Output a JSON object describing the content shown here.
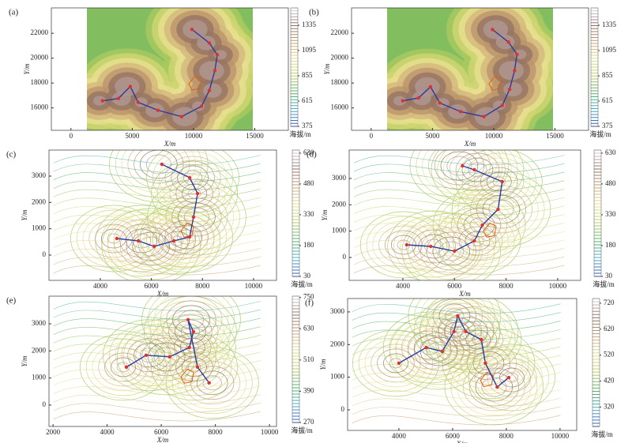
{
  "chart_data": [
    {
      "type": "contour",
      "label": "(a)",
      "x_label": "X/m",
      "y_label": "Y/m",
      "colorbar_label": "海拔/m",
      "filled": true,
      "xlim": [
        -1600,
        17740
      ],
      "ylim": [
        14200,
        24040
      ],
      "xticks": [
        0,
        5000,
        10000,
        15000
      ],
      "yticks": [
        16000,
        18000,
        20000,
        22000
      ],
      "clim": [
        375,
        1500
      ],
      "cticks": [
        375,
        615,
        855,
        1095,
        1335
      ],
      "route": {
        "color": "#2a3aa0",
        "point_color": "#e03030",
        "x": [
          2580,
          3870,
          4840,
          5480,
          7100,
          9030,
          10650,
          11290,
          11740,
          11940,
          11290,
          9870
        ],
        "y": [
          16570,
          16760,
          17720,
          16450,
          15810,
          15300,
          16130,
          17400,
          18990,
          20270,
          21220,
          22310
        ]
      }
    },
    {
      "type": "contour",
      "label": "(b)",
      "x_label": "X/m",
      "y_label": "Y/m",
      "colorbar_label": "海拔/m",
      "filled": true,
      "xlim": [
        -1600,
        17740
      ],
      "ylim": [
        14200,
        24040
      ],
      "xticks": [
        0,
        5000,
        10000,
        15000
      ],
      "yticks": [
        16000,
        18000,
        20000,
        22000
      ],
      "clim": [
        375,
        1500
      ],
      "cticks": [
        375,
        615,
        855,
        1095,
        1335
      ],
      "route": {
        "color": "#2a3aa0",
        "point_color": "#e03030",
        "x": [
          2580,
          3870,
          4840,
          5600,
          7300,
          9200,
          10700,
          11300,
          11700,
          11900,
          11200,
          9900
        ],
        "y": [
          16570,
          16800,
          17700,
          16400,
          15700,
          15300,
          16200,
          17500,
          19000,
          20300,
          21300,
          22300
        ]
      }
    },
    {
      "type": "contour",
      "label": "(c)",
      "x_label": "X/m",
      "y_label": "Y/m",
      "colorbar_label": "海拔/m",
      "filled": false,
      "xlim": [
        1990,
        10900
      ],
      "ylim": [
        -960,
        3990
      ],
      "xticks": [
        4000,
        6000,
        8000,
        10000
      ],
      "yticks": [
        0,
        1000,
        2000,
        3000
      ],
      "clim": [
        30,
        645
      ],
      "cticks": [
        30,
        180,
        330,
        480,
        630
      ],
      "route": {
        "color": "#2a3aa0",
        "point_color": "#e03030",
        "x": [
          4650,
          5490,
          6110,
          6880,
          7500,
          7650,
          7810,
          7500,
          6410
        ],
        "y": [
          630,
          540,
          330,
          540,
          690,
          1440,
          2340,
          2940,
          3450
        ]
      }
    },
    {
      "type": "contour",
      "label": "(d)",
      "x_label": "X/m",
      "y_label": "Y/m",
      "colorbar_label": "海拔/m",
      "filled": false,
      "xlim": [
        1920,
        10890
      ],
      "ylim": [
        -870,
        4080
      ],
      "xticks": [
        4000,
        6000,
        8000,
        10000
      ],
      "yticks": [
        0,
        1000,
        2000,
        3000
      ],
      "clim": [
        30,
        645
      ],
      "cticks": [
        30,
        180,
        330,
        480,
        630
      ],
      "route": {
        "color": "#2a3aa0",
        "point_color": "#e03030",
        "x": [
          4150,
          5080,
          6000,
          6770,
          7080,
          7690,
          7850,
          6770,
          6310
        ],
        "y": [
          480,
          420,
          240,
          630,
          1230,
          1830,
          2880,
          3330,
          3480
        ]
      }
    },
    {
      "type": "contour",
      "label": "(e)",
      "x_label": "X/m",
      "y_label": "Y/m",
      "colorbar_label": "海拔/m",
      "filled": false,
      "xlim": [
        1850,
        10260
      ],
      "ylim": [
        -790,
        4020
      ],
      "xticks": [
        2000,
        4000,
        6000,
        8000,
        10000
      ],
      "yticks": [
        0,
        1000,
        2000,
        3000
      ],
      "clim": [
        270,
        755
      ],
      "cticks": [
        270,
        390,
        510,
        630,
        750
      ],
      "route": {
        "color": "#2a3aa0",
        "point_color": "#e03030",
        "x": [
          4710,
          5440,
          6310,
          7040,
          7190,
          6990,
          7340,
          7770
        ],
        "y": [
          1400,
          1840,
          1780,
          2130,
          2710,
          3150,
          1400,
          820
        ]
      }
    },
    {
      "type": "contour",
      "label": "(f)",
      "x_label": "X/m",
      "y_label": "Y/m",
      "colorbar_label": "海拔/m",
      "filled": false,
      "xlim": [
        2090,
        10620
      ],
      "ylim": [
        -630,
        3410
      ],
      "xticks": [
        4000,
        6000,
        8000,
        10000
      ],
      "yticks": [
        0,
        1000,
        2000,
        3000
      ],
      "clim": [
        245,
        738
      ],
      "cticks": [
        320,
        420,
        520,
        620,
        720
      ],
      "route": {
        "color": "#2a3aa0",
        "point_color": "#e03030",
        "x": [
          4000,
          5020,
          5610,
          6050,
          6190,
          6490,
          7070,
          7220,
          7660,
          8090
        ],
        "y": [
          1430,
          1910,
          1790,
          2400,
          2880,
          2400,
          2150,
          1430,
          700,
          990
        ]
      }
    }
  ]
}
